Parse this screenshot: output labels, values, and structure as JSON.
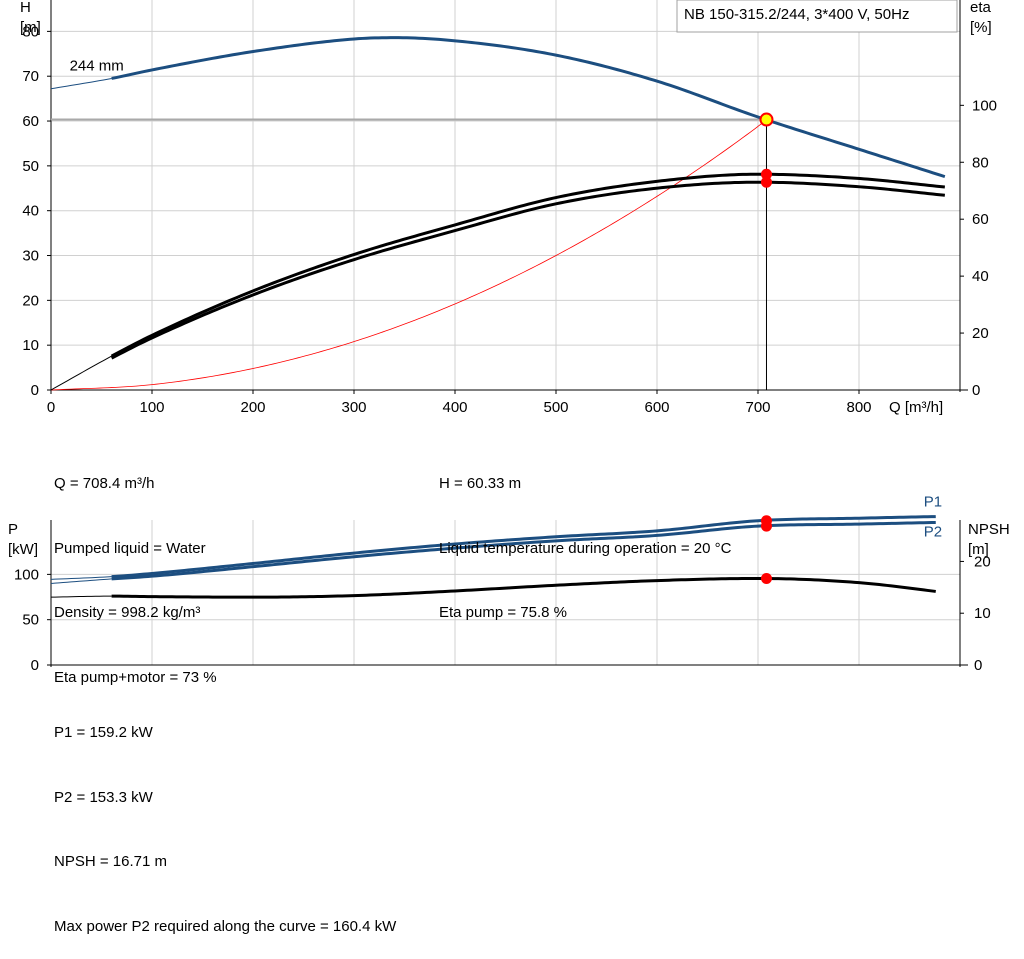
{
  "colors": {
    "head_curve": "#1c4e80",
    "power_curve": "#1c4e80",
    "efficiency_curves": "#000000",
    "npsh_curve": "#000000",
    "system_curve": "#ff0000",
    "grid": "#d0d0d0",
    "operating_point_marker": "#ffff00",
    "marker": "#ff0000"
  },
  "chart_data": [
    {
      "type": "line",
      "title": "NB 150-315.2/244, 3*400 V, 50Hz",
      "xlabel": "Q [m³/h]",
      "ylabel": "H\n[m]",
      "ylabel_right": "eta\n[%]",
      "xlim": [
        0,
        900
      ],
      "ylim": [
        0,
        87
      ],
      "ylim_right": [
        0,
        137
      ],
      "x_ticks": [
        0,
        100,
        200,
        300,
        400,
        500,
        600,
        700,
        800
      ],
      "y_ticks": [
        0,
        10,
        20,
        30,
        40,
        50,
        60,
        70,
        80
      ],
      "y_right_ticks": [
        0,
        20,
        40,
        60,
        80,
        100
      ],
      "grid": true,
      "curve_label": "244 mm",
      "series": [
        {
          "role": "head",
          "axis": "left",
          "x": [
            0,
            60,
            100,
            200,
            300,
            340,
            400,
            500,
            600,
            700,
            800,
            885
          ],
          "y": [
            67.2,
            69.5,
            71.4,
            75.5,
            78.3,
            78.6,
            77.9,
            74.7,
            68.9,
            60.9,
            53.7,
            47.6
          ]
        },
        {
          "role": "eta_pump",
          "axis": "right",
          "x": [
            0,
            60,
            100,
            200,
            300,
            400,
            500,
            600,
            700,
            800,
            885
          ],
          "y": [
            0,
            11.9,
            19.2,
            34.8,
            47.6,
            58.0,
            67.6,
            73.3,
            75.8,
            74.3,
            71.3
          ]
        },
        {
          "role": "eta_pump_motor",
          "axis": "right",
          "x": [
            0,
            60,
            100,
            200,
            300,
            400,
            500,
            600,
            700,
            800,
            885
          ],
          "y": [
            0,
            11.2,
            18.3,
            33.4,
            45.8,
            56.0,
            65.4,
            70.9,
            73.0,
            71.4,
            68.4
          ]
        },
        {
          "role": "system",
          "axis": "left",
          "x": [
            0,
            100,
            200,
            300,
            400,
            500,
            600,
            700,
            708.4
          ],
          "y": [
            0,
            1.2,
            4.8,
            10.8,
            19.2,
            30.0,
            43.2,
            58.8,
            60.33
          ]
        }
      ],
      "operating_point": {
        "x": 708.4,
        "y": 60.33,
        "eta_pump": 75.8,
        "eta_pump_motor": 73
      }
    },
    {
      "type": "line",
      "ylabel": "P\n[kW]",
      "ylabel_right": "NPSH\n[m]",
      "xlim": [
        0,
        900
      ],
      "ylim": [
        0,
        160
      ],
      "ylim_right": [
        0,
        28
      ],
      "y_ticks": [
        0,
        50,
        100
      ],
      "y_right_ticks": [
        0,
        10,
        20
      ],
      "grid": true,
      "series": [
        {
          "name": "P1",
          "role": "p1",
          "axis": "left",
          "x": [
            0,
            60,
            100,
            200,
            300,
            400,
            500,
            600,
            700,
            800,
            885
          ],
          "y": [
            94.5,
            97.5,
            101.0,
            112.0,
            123.5,
            133.5,
            141.5,
            148.0,
            159.2,
            162.0,
            164.0
          ]
        },
        {
          "name": "P2",
          "role": "p2",
          "axis": "left",
          "x": [
            0,
            60,
            100,
            200,
            300,
            400,
            500,
            600,
            700,
            800,
            885
          ],
          "y": [
            90.0,
            95.0,
            98.0,
            108.5,
            119.5,
            129.0,
            137.0,
            143.0,
            153.3,
            155.5,
            157.5
          ]
        },
        {
          "role": "npsh",
          "axis": "right",
          "x": [
            0,
            60,
            100,
            200,
            300,
            400,
            500,
            600,
            700,
            800,
            885
          ],
          "y": [
            13.1,
            13.3,
            13.2,
            13.1,
            13.4,
            14.3,
            15.4,
            16.3,
            16.71,
            15.9,
            14.0
          ]
        }
      ],
      "operating_point": {
        "x": 708.4,
        "p1": 159.2,
        "p2": 153.3,
        "npsh": 16.71
      }
    }
  ],
  "info_top": {
    "left": [
      "Q = 708.4 m³/h",
      "Pumped liquid = Water",
      "Density = 998.2 kg/m³",
      "Eta pump+motor = 73 %"
    ],
    "right": [
      "H = 60.33 m",
      "Liquid temperature during operation = 20 °C",
      "Eta pump = 75.8 %"
    ]
  },
  "info_bottom": [
    "P1 = 159.2 kW",
    "P2 = 153.3 kW",
    "NPSH = 16.71 m",
    "Max power P2 required along the curve = 160.4 kW"
  ]
}
